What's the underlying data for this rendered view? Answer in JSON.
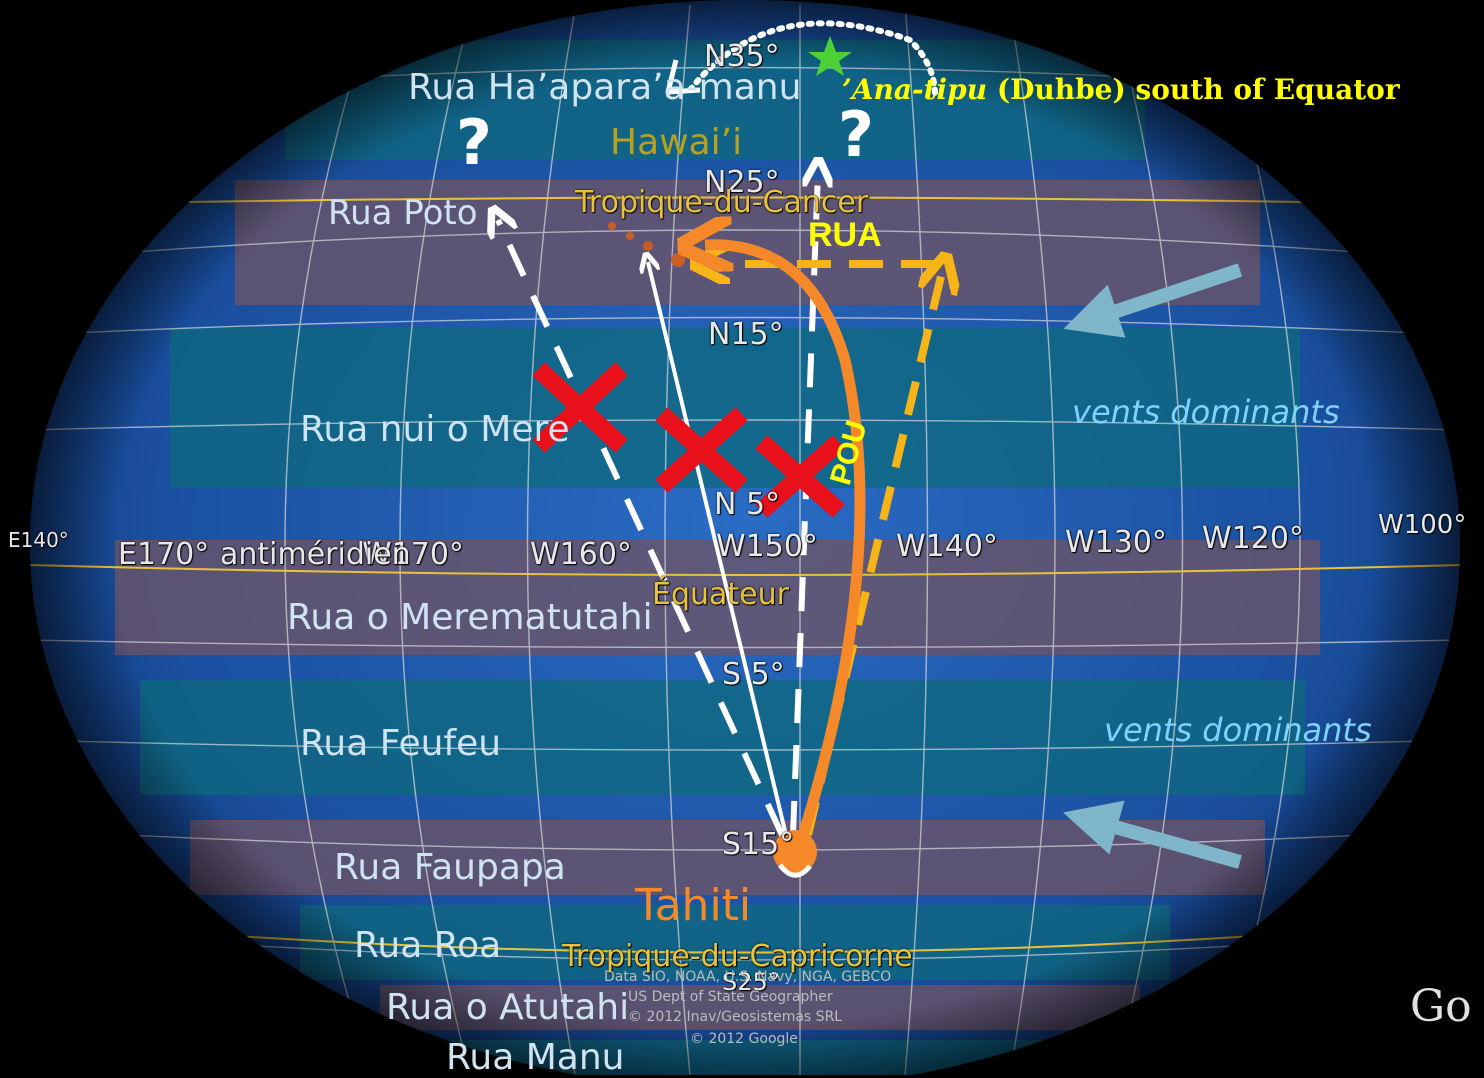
{
  "bands": [
    {
      "label": "Rua Ha’apara’a-manu",
      "color": "#0e6a7e"
    },
    {
      "label": "Rua Poto",
      "color": "#6b5468"
    },
    {
      "label": "Rua nui o Mere",
      "color": "#0e6a7e"
    },
    {
      "label": "Rua o Merematutahi",
      "color": "#6b5468"
    },
    {
      "label": "Rua Feufeu",
      "color": "#0e6a7e"
    },
    {
      "label": "Rua Faupapa",
      "color": "#6b5468"
    },
    {
      "label": "Rua Roa",
      "color": "#0e6a7e"
    },
    {
      "label": "Rua o Atutahi",
      "color": "#6b5468"
    },
    {
      "label": "Rua Manu",
      "color": "#0e6a7e"
    }
  ],
  "places": {
    "hawaii": "Hawai’i",
    "tahiti": "Tahiti"
  },
  "star": {
    "name_italic": "’Ana-tipu",
    "name_rest": " (Duhbe) south of Equator",
    "color": "#ffff00",
    "star_color": "#4cd137"
  },
  "grid_labels": {
    "n35": "N35°",
    "n25": "N25°",
    "n15": "N15°",
    "n5": "N 5°",
    "s5": "S 5°",
    "s15": "S15°",
    "s25": "S25°",
    "e140": "E140°",
    "e170": "E170°",
    "w170": "W170°",
    "w160": "W160°",
    "w150": "W150°",
    "w140": "W140°",
    "w130": "W130°",
    "w120": "W120°",
    "w100": "W100°"
  },
  "lines": {
    "cancer": "Tropique-du-Cancer",
    "capricorn": "Tropique-du-Capricorne",
    "equator": "Équateur",
    "antimeridian": "antiméridien"
  },
  "route_labels": {
    "rua": "RUA",
    "pou": "POU",
    "question": "?"
  },
  "winds": {
    "north": "vents dominants",
    "south": "vents dominants"
  },
  "credits": {
    "line1": "Data SIO, NOAA, U.S. Navy, NGA, GEBCO",
    "line2": "US Dept of State Geographer",
    "line3": "© 2012 Inav/Geosistemas SRL",
    "line4": "© 2012 Google",
    "logo": "Go"
  },
  "colors": {
    "orange": "#f5892a",
    "yellow_dashed": "#f6b418",
    "white": "#ffffff",
    "cross": "#e8101a",
    "wind_arrow": "#7fb6c9",
    "ocean": "#1d58a8"
  }
}
